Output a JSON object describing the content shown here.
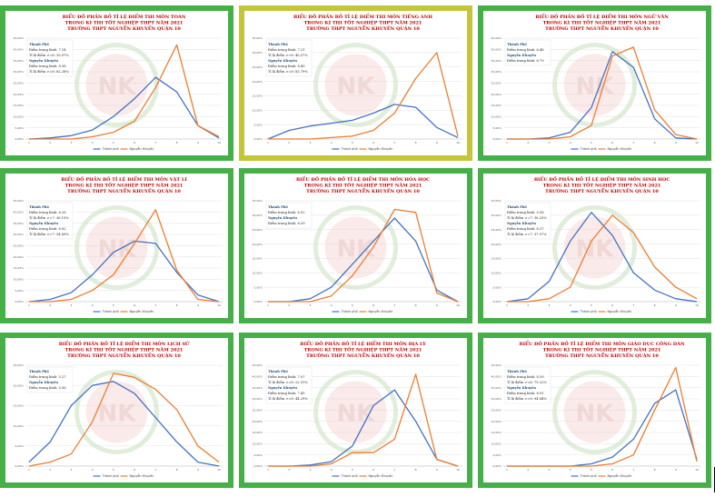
{
  "colors": {
    "frame": "#46b048",
    "frame_highlight": "#c3c63a",
    "city": "#4472c4",
    "school": "#ed7d31",
    "title": "#c00000",
    "stats_heading": "#1f4e79",
    "watermark": "#7bb661"
  },
  "logo_text": "NK",
  "chart_data": [
    {
      "type": "line",
      "subject": "TOÁN",
      "title": [
        "BIỂU ĐỒ PHẦN BỐ TỈ LỆ ĐIỂM THI MÔN TOÁN",
        "TRONG KÌ THI TỐT NGHIỆP THPT NĂM 2021",
        "TRƯỜNG THPT NGUYỄN KHUYẾN QUẬN 10"
      ],
      "x": [
        1,
        2,
        3,
        4,
        5,
        6,
        7,
        8,
        9,
        10
      ],
      "ylim": [
        0,
        0.45
      ],
      "y_ticks": [
        "0,00%",
        "5,00%",
        "10,00%",
        "15,00%",
        "20,00%",
        "25,00%",
        "30,00%",
        "35,00%",
        "40,00%",
        "45,00%"
      ],
      "series": [
        {
          "name": "Thành phố",
          "values": [
            0,
            0.005,
            0.015,
            0.04,
            0.1,
            0.18,
            0.275,
            0.21,
            0.06,
            0.005
          ]
        },
        {
          "name": "Nguyễn Khuyến",
          "values": [
            0,
            0,
            0,
            0.01,
            0.03,
            0.08,
            0.23,
            0.42,
            0.06,
            0.01
          ]
        }
      ],
      "stats": [
        {
          "text": "Thành Phố",
          "bold": true
        },
        {
          "text": "Điểm trung bình: 7.14",
          "bold": false
        },
        {
          "text": "Tỉ lệ điểm >=8: 39,97%",
          "bold": false
        },
        {
          "text": "Nguyễn Khuyến",
          "bold": true
        },
        {
          "text": "Điểm trung bình: 8.38",
          "bold": false
        },
        {
          "text": "Tỉ lệ điểm >=8: 82,28%",
          "bold": false
        }
      ]
    },
    {
      "type": "line",
      "subject": "TIẾNG ANH",
      "title": [
        "BIỂU ĐỒ PHẦN BỐ TỈ LỆ ĐIỂM THI MÔN TIẾNG ANH",
        "TRONG KÌ THI TỐT NGHIỆP THPT NĂM 2021",
        "TRƯỜNG THPT NGUYỄN KHUYẾN QUẬN 10"
      ],
      "x": [
        1,
        2,
        3,
        4,
        5,
        6,
        7,
        8,
        9,
        10
      ],
      "ylim": [
        0,
        0.35
      ],
      "y_ticks": [
        "0,00%",
        "5,00%",
        "10,00%",
        "15,00%",
        "20,00%",
        "25,00%",
        "30,00%",
        "35,00%"
      ],
      "series": [
        {
          "name": "Thành phố",
          "values": [
            0,
            0.03,
            0.045,
            0.055,
            0.065,
            0.09,
            0.12,
            0.11,
            0.04,
            0.005
          ]
        },
        {
          "name": "Nguyễn Khuyến",
          "values": [
            0,
            0,
            0,
            0.005,
            0.01,
            0.03,
            0.09,
            0.21,
            0.3,
            0.01
          ]
        }
      ],
      "stats": [
        {
          "text": "Thành Phố",
          "bold": true
        },
        {
          "text": "Điểm trung bình: 7.21",
          "bold": false
        },
        {
          "text": "Tỉ lệ điểm >=8: 40,57%",
          "bold": false
        },
        {
          "text": "Nguyễn Khuyến",
          "bold": true
        },
        {
          "text": "Điểm trung bình: 8.45",
          "bold": false
        },
        {
          "text": "Tỉ lệ điểm >=8: 83,79%",
          "bold": false
        }
      ]
    },
    {
      "type": "line",
      "subject": "NGỮ VĂN",
      "title": [
        "BIỂU ĐỒ PHẦN BỐ TỈ LỆ ĐIỂM THI MÔN NGỮ VĂN",
        "TRONG KÌ THI TỐT NGHIỆP THPT NĂM 2021",
        "TRƯỜNG THPT NGUYỄN KHUYẾN QUẬN 10"
      ],
      "x": [
        1,
        2,
        3,
        4,
        5,
        6,
        7,
        8,
        9,
        10
      ],
      "ylim": [
        0,
        0.45
      ],
      "y_ticks": [
        "0,00%",
        "5,00%",
        "10,00%",
        "15,00%",
        "20,00%",
        "25,00%",
        "30,00%",
        "35,00%",
        "40,00%",
        "45,00%"
      ],
      "series": [
        {
          "name": "Thành phố",
          "values": [
            0,
            0,
            0.005,
            0.03,
            0.14,
            0.39,
            0.32,
            0.09,
            0.005,
            0
          ]
        },
        {
          "name": "Nguyễn Khuyến",
          "values": [
            0,
            0,
            0,
            0.01,
            0.06,
            0.37,
            0.41,
            0.13,
            0.02,
            0
          ]
        }
      ],
      "stats": [
        {
          "text": "Thành Phố",
          "bold": true
        },
        {
          "text": "Điểm trung bình: 6.48",
          "bold": false
        },
        {
          "text": "Nguyễn Khuyến",
          "bold": true
        },
        {
          "text": "Điểm trung bình: 6.79",
          "bold": false
        }
      ]
    },
    {
      "type": "line",
      "subject": "VẬT LÍ",
      "title": [
        "BIỂU ĐỒ PHẦN BỐ TỈ LỆ ĐIỂM THI MÔN VẬT LÍ",
        "TRONG KÌ THI TỐT NGHIỆP THPT NĂM 2021",
        "TRƯỜNG THPT NGUYỄN KHUYẾN QUẬN 10"
      ],
      "x": [
        1,
        2,
        3,
        4,
        5,
        6,
        7,
        8,
        9,
        10
      ],
      "ylim": [
        0,
        0.45
      ],
      "y_ticks": [
        "0,00%",
        "5,00%",
        "10,00%",
        "15,00%",
        "20,00%",
        "25,00%",
        "30,00%",
        "35,00%",
        "40,00%",
        "45,00%"
      ],
      "series": [
        {
          "name": "Thành phố",
          "values": [
            0,
            0.01,
            0.04,
            0.12,
            0.22,
            0.27,
            0.26,
            0.13,
            0.03,
            0
          ]
        },
        {
          "name": "Nguyễn Khuyến",
          "values": [
            0,
            0,
            0.01,
            0.05,
            0.12,
            0.26,
            0.41,
            0.14,
            0.01,
            0
          ]
        }
      ],
      "stats": [
        {
          "text": "Thành Phố",
          "bold": true
        },
        {
          "text": "Điểm trung bình: 6.28",
          "bold": false
        },
        {
          "text": "Tỉ lệ điểm >=7: 36.13%",
          "bold": false
        },
        {
          "text": "Nguyễn Khuyến",
          "bold": true
        },
        {
          "text": "Điểm trung bình: 6.82",
          "bold": false
        },
        {
          "text": "Tỉ lệ điểm >=7: 54.69%",
          "bold": false
        }
      ]
    },
    {
      "type": "line",
      "subject": "HÓA HỌC",
      "title": [
        "BIỂU ĐỒ PHẦN BỐ TỈ LỆ ĐIỂM THI MÔN HÓA HỌC",
        "TRONG KÌ THI TỐT NGHIỆP THPT NĂM 2021",
        "TRƯỜNG THPT NGUYỄN KHUYẾN QUẬN 10"
      ],
      "x": [
        1,
        2,
        3,
        4,
        5,
        6,
        7,
        8,
        9,
        10
      ],
      "ylim": [
        0,
        0.35
      ],
      "y_ticks": [
        "0,00%",
        "5,00%",
        "10,00%",
        "15,00%",
        "20,00%",
        "25,00%",
        "30,00%",
        "35,00%"
      ],
      "series": [
        {
          "name": "Thành phố",
          "values": [
            0,
            0,
            0.01,
            0.05,
            0.13,
            0.21,
            0.29,
            0.21,
            0.04,
            0
          ]
        },
        {
          "name": "Nguyễn Khuyến",
          "values": [
            0,
            0,
            0,
            0.02,
            0.09,
            0.19,
            0.32,
            0.31,
            0.03,
            0
          ]
        }
      ],
      "stats": [
        {
          "text": "Thành Phố",
          "bold": true
        },
        {
          "text": "Điểm trung bình: 6.52",
          "bold": false
        },
        {
          "text": "Nguyễn Khuyến",
          "bold": true
        },
        {
          "text": "Điểm trung bình: 6.59",
          "bold": false
        }
      ]
    },
    {
      "type": "line",
      "subject": "SINH HỌC",
      "title": [
        "BIỂU ĐỒ PHẦN BỐ TỈ LỆ ĐIỂM THI MÔN SINH HỌC",
        "TRONG KÌ THI TỐT NGHIỆP THPT NĂM 2021",
        "TRƯỜNG THPT NGUYỄN KHUYẾN QUẬN 10"
      ],
      "x": [
        1,
        2,
        3,
        4,
        5,
        6,
        7,
        8,
        9,
        10
      ],
      "ylim": [
        0,
        0.35
      ],
      "y_ticks": [
        "0,00%",
        "5,00%",
        "10,00%",
        "15,00%",
        "20,00%",
        "25,00%",
        "30,00%",
        "35,00%"
      ],
      "series": [
        {
          "name": "Thành phố",
          "values": [
            0,
            0.01,
            0.07,
            0.21,
            0.31,
            0.23,
            0.1,
            0.04,
            0.01,
            0
          ]
        },
        {
          "name": "Nguyễn Khuyến",
          "values": [
            0,
            0,
            0.01,
            0.05,
            0.21,
            0.3,
            0.24,
            0.12,
            0.05,
            0.01
          ]
        }
      ],
      "stats": [
        {
          "text": "Thành Phố",
          "bold": true
        },
        {
          "text": "Điểm trung bình: 5.58",
          "bold": false
        },
        {
          "text": "Tỉ lệ điểm >=7: 16.23%",
          "bold": false
        },
        {
          "text": "Nguyễn Khuyến",
          "bold": true
        },
        {
          "text": "Điểm trung bình: 6.37",
          "bold": false
        },
        {
          "text": "Tỉ lệ điểm >=7: 37.07%",
          "bold": false
        }
      ]
    },
    {
      "type": "line",
      "subject": "LỊCH SỬ",
      "title": [
        "BIỂU ĐỒ PHẦN BỐ TỈ LỆ ĐIỂM THI MÔN LỊCH SỬ",
        "TRONG KÌ THI TỐT NGHIỆP THPT NĂM 2021",
        "TRƯỜNG THPT NGUYỄN KHUYẾN QUẬN 10"
      ],
      "x": [
        1,
        2,
        3,
        4,
        5,
        6,
        7,
        8,
        9,
        10
      ],
      "ylim": [
        0,
        0.25
      ],
      "y_ticks": [
        "0,00%",
        "5,00%",
        "10,00%",
        "15,00%",
        "20,00%",
        "25,00%"
      ],
      "series": [
        {
          "name": "Thành phố",
          "values": [
            0.01,
            0.06,
            0.15,
            0.2,
            0.21,
            0.18,
            0.12,
            0.06,
            0.01,
            0
          ]
        },
        {
          "name": "Nguyễn Khuyến",
          "values": [
            0,
            0.01,
            0.03,
            0.11,
            0.23,
            0.22,
            0.19,
            0.14,
            0.05,
            0.01
          ]
        }
      ],
      "stats": [
        {
          "text": "Thành Phố",
          "bold": true
        },
        {
          "text": "Điểm trung bình: 5.27",
          "bold": false
        },
        {
          "text": "Nguyễn Khuyến",
          "bold": true
        },
        {
          "text": "Điểm trung bình: 5.56",
          "bold": false
        }
      ]
    },
    {
      "type": "line",
      "subject": "ĐỊA LÝ",
      "title": [
        "BIỂU ĐỒ PHẦN BỐ TỈ LỆ ĐIỂM THI MÔN ĐỊA LÝ",
        "TRONG KÌ THI TỐT NGHIỆP THPT NĂM 2021",
        "TRƯỜNG THPT NGUYỄN KHUYẾN QUẬN 10"
      ],
      "x": [
        1,
        2,
        3,
        4,
        5,
        6,
        7,
        8,
        9,
        10
      ],
      "ylim": [
        0,
        0.45
      ],
      "y_ticks": [
        "0,00%",
        "5,00%",
        "10,00%",
        "15,00%",
        "20,00%",
        "25,00%",
        "30,00%",
        "35,00%",
        "40,00%",
        "45,00%"
      ],
      "series": [
        {
          "name": "Thành phố",
          "values": [
            0,
            0,
            0.005,
            0.02,
            0.09,
            0.27,
            0.34,
            0.2,
            0.03,
            0
          ]
        },
        {
          "name": "Nguyễn Khuyến",
          "values": [
            0,
            0,
            0,
            0.01,
            0.06,
            0.06,
            0.12,
            0.41,
            0.03,
            0
          ]
        }
      ],
      "stats": [
        {
          "text": "Thành Phố",
          "bold": true
        },
        {
          "text": "Điểm trung bình: 7.07",
          "bold": false
        },
        {
          "text": "Tỉ lệ điểm >=8: 22.51%",
          "bold": false
        },
        {
          "text": "Nguyễn Khuyến",
          "bold": true
        },
        {
          "text": "Điểm trung bình: 7.45",
          "bold": false
        },
        {
          "text": "Tỉ lệ điểm >=8: 44.29%",
          "bold": false
        }
      ]
    },
    {
      "type": "line",
      "subject": "GIÁO DỤC CÔNG DÂN",
      "title": [
        "BIỂU ĐỒ PHẦN BỐ TỈ LỆ ĐIỂM THI MÔN GIÁO DỤC CÔNG DÂN",
        "TRONG KÌ THI TỐT NGHIỆP THPT NĂM 2021",
        "TRƯỜNG THPT NGUYỄN KHUYẾN QUẬN 10"
      ],
      "x": [
        1,
        2,
        3,
        4,
        5,
        6,
        7,
        8,
        9,
        10
      ],
      "ylim": [
        0,
        0.45
      ],
      "y_ticks": [
        "0,00%",
        "5,00%",
        "10,00%",
        "15,00%",
        "20,00%",
        "25,00%",
        "30,00%",
        "35,00%",
        "40,00%",
        "45,00%"
      ],
      "series": [
        {
          "name": "Thành phố",
          "values": [
            0,
            0,
            0,
            0,
            0.01,
            0.04,
            0.12,
            0.28,
            0.34,
            0.03
          ]
        },
        {
          "name": "Nguyễn Khuyến",
          "values": [
            0,
            0,
            0,
            0,
            0,
            0.01,
            0.05,
            0.25,
            0.44,
            0.02
          ]
        }
      ],
      "stats": [
        {
          "text": "Thành Phố",
          "bold": true
        },
        {
          "text": "Điểm trung bình: 8.59",
          "bold": false
        },
        {
          "text": "Tỉ lệ điểm >=8: 79.22%",
          "bold": false
        },
        {
          "text": "Nguyễn Khuyến",
          "bold": true
        },
        {
          "text": "Điểm trung bình: 8.91",
          "bold": false
        },
        {
          "text": "Tỉ lệ điểm >=8: 94.84%",
          "bold": false
        }
      ]
    }
  ]
}
